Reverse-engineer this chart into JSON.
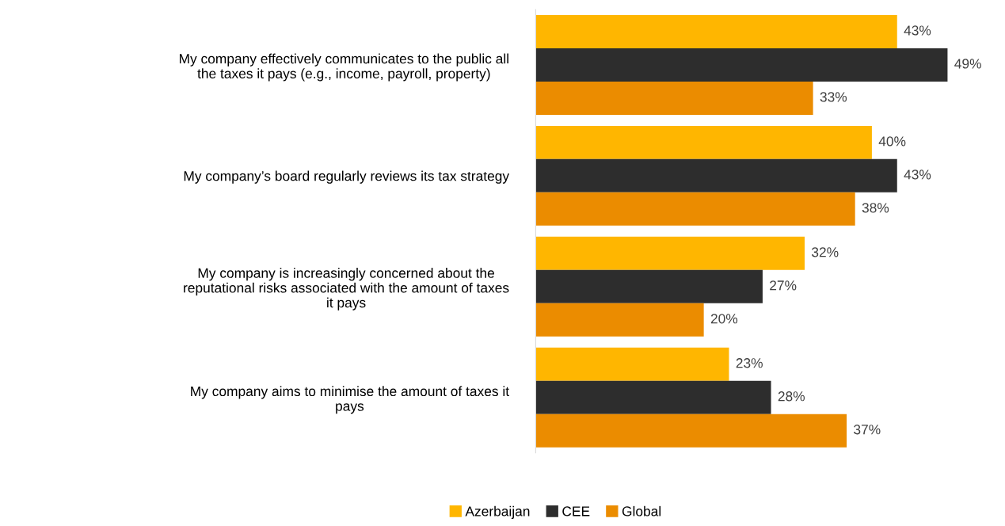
{
  "chart_data": {
    "type": "bar",
    "orientation": "horizontal",
    "categories": [
      "My company effectively communicates to the public all\nthe taxes it pays (e.g., income, payroll, property)",
      "My company’s board regularly reviews its tax strategy",
      "My company is increasingly concerned about the\nreputational risks associated with the amount of taxes\nit pays",
      "My company aims to minimise the amount of taxes it\npays"
    ],
    "series": [
      {
        "name": "Azerbaijan",
        "color": "#ffb600",
        "values": [
          43,
          40,
          32,
          23
        ],
        "value_labels": [
          "43%",
          "40%",
          "32%",
          "23%"
        ]
      },
      {
        "name": "CEE",
        "color": "#2d2d2d",
        "values": [
          49,
          43,
          27,
          28
        ],
        "value_labels": [
          "49%",
          "43%",
          "27%",
          "28%"
        ]
      },
      {
        "name": "Global",
        "color": "#eb8c00",
        "values": [
          33,
          38,
          20,
          37
        ],
        "value_labels": [
          "33%",
          "38%",
          "20%",
          "37%"
        ]
      }
    ],
    "legend": "bottom",
    "grid": false,
    "tick_labels": "y"
  }
}
